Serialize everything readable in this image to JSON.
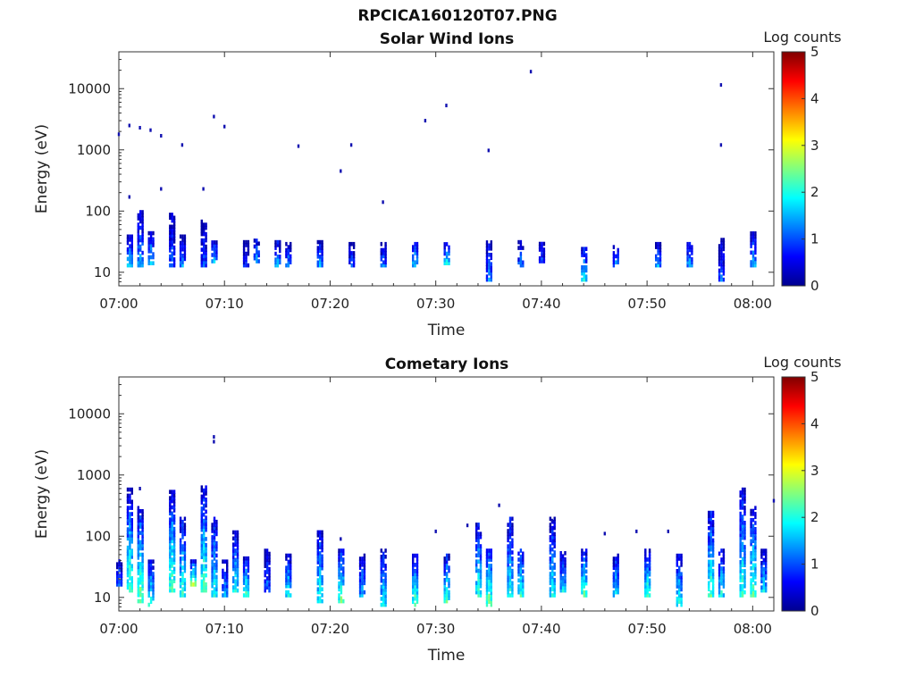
{
  "figure": {
    "title": "RPCICA160120T07.PNG"
  },
  "chart_data": [
    {
      "type": "heatmap",
      "title": "Solar Wind Ions",
      "xlabel": "Time",
      "ylabel": "Energy (eV)",
      "x_ticks": [
        "07:00",
        "07:10",
        "07:20",
        "07:30",
        "07:40",
        "07:50",
        "08:00"
      ],
      "y_ticks": [
        "10",
        "100",
        "1000",
        "10000"
      ],
      "y_scale": "log",
      "xlim": [
        "07:00",
        "08:02"
      ],
      "ylim": [
        6,
        40000
      ],
      "colorbar": {
        "label": "Log counts",
        "ticks": [
          "0",
          "1",
          "2",
          "3",
          "4",
          "5"
        ],
        "range": [
          0,
          5
        ],
        "colormap": "jet"
      },
      "bursts": [
        {
          "t": "07:01",
          "min": 12,
          "max": 40,
          "peak": 1.8
        },
        {
          "t": "07:02",
          "min": 12,
          "max": 100,
          "peak": 1.6
        },
        {
          "t": "07:03",
          "min": 13,
          "max": 45,
          "peak": 1.7
        },
        {
          "t": "07:05",
          "min": 12,
          "max": 90,
          "peak": 1.2
        },
        {
          "t": "07:06",
          "min": 12,
          "max": 40,
          "peak": 1.4
        },
        {
          "t": "07:08",
          "min": 12,
          "max": 70,
          "peak": 1.1
        },
        {
          "t": "07:09",
          "min": 14,
          "max": 32,
          "peak": 1.6
        },
        {
          "t": "07:12",
          "min": 12,
          "max": 32,
          "peak": 1.0
        },
        {
          "t": "07:13",
          "min": 14,
          "max": 34,
          "peak": 1.5
        },
        {
          "t": "07:15",
          "min": 12,
          "max": 32,
          "peak": 1.7
        },
        {
          "t": "07:16",
          "min": 12,
          "max": 30,
          "peak": 1.3
        },
        {
          "t": "07:19",
          "min": 12,
          "max": 32,
          "peak": 1.5
        },
        {
          "t": "07:22",
          "min": 12,
          "max": 30,
          "peak": 1.1
        },
        {
          "t": "07:25",
          "min": 12,
          "max": 30,
          "peak": 1.3
        },
        {
          "t": "07:28",
          "min": 12,
          "max": 30,
          "peak": 1.8
        },
        {
          "t": "07:31",
          "min": 13,
          "max": 30,
          "peak": 1.9
        },
        {
          "t": "07:35",
          "min": 7,
          "max": 32,
          "peak": 1.4
        },
        {
          "t": "07:38",
          "min": 12,
          "max": 32,
          "peak": 1.3
        },
        {
          "t": "07:40",
          "min": 14,
          "max": 30,
          "peak": 1.0
        },
        {
          "t": "07:44",
          "min": 7,
          "max": 25,
          "peak": 1.9
        },
        {
          "t": "07:47",
          "min": 12,
          "max": 30,
          "peak": 1.3
        },
        {
          "t": "07:51",
          "min": 12,
          "max": 30,
          "peak": 1.5
        },
        {
          "t": "07:54",
          "min": 12,
          "max": 30,
          "peak": 1.6
        },
        {
          "t": "07:57",
          "min": 7,
          "max": 35,
          "peak": 1.2
        },
        {
          "t": "08:00",
          "min": 12,
          "max": 45,
          "peak": 1.7
        }
      ],
      "points": [
        {
          "t": "07:00",
          "e": 1800
        },
        {
          "t": "07:01",
          "e": 2500
        },
        {
          "t": "07:02",
          "e": 2300
        },
        {
          "t": "07:03",
          "e": 2100
        },
        {
          "t": "07:04",
          "e": 1700
        },
        {
          "t": "07:06",
          "e": 1200
        },
        {
          "t": "07:09",
          "e": 3500
        },
        {
          "t": "07:10",
          "e": 2400
        },
        {
          "t": "07:17",
          "e": 1150
        },
        {
          "t": "07:21",
          "e": 450
        },
        {
          "t": "07:22",
          "e": 1200
        },
        {
          "t": "07:25",
          "e": 140
        },
        {
          "t": "07:29",
          "e": 3000
        },
        {
          "t": "07:31",
          "e": 5300
        },
        {
          "t": "07:35",
          "e": 980
        },
        {
          "t": "07:39",
          "e": 19000
        },
        {
          "t": "07:57",
          "e": 11500
        },
        {
          "t": "07:57",
          "e": 1200
        },
        {
          "t": "07:04",
          "e": 230
        },
        {
          "t": "07:08",
          "e": 230
        },
        {
          "t": "07:01",
          "e": 170
        }
      ]
    },
    {
      "type": "heatmap",
      "title": "Cometary Ions",
      "xlabel": "Time",
      "ylabel": "Energy (eV)",
      "x_ticks": [
        "07:00",
        "07:10",
        "07:20",
        "07:30",
        "07:40",
        "07:50",
        "08:00"
      ],
      "y_ticks": [
        "10",
        "100",
        "1000",
        "10000"
      ],
      "y_scale": "log",
      "xlim": [
        "07:00",
        "08:02"
      ],
      "ylim": [
        6,
        40000
      ],
      "colorbar": {
        "label": "Log counts",
        "ticks": [
          "0",
          "1",
          "2",
          "3",
          "4",
          "5"
        ],
        "range": [
          0,
          5
        ],
        "colormap": "jet"
      },
      "bursts": [
        {
          "t": "07:00",
          "min": 15,
          "max": 40,
          "peak": 1.4
        },
        {
          "t": "07:01",
          "min": 12,
          "max": 600,
          "peak": 2.4
        },
        {
          "t": "07:02",
          "min": 8,
          "max": 300,
          "peak": 2.6
        },
        {
          "t": "07:03",
          "min": 7,
          "max": 40,
          "peak": 2.2
        },
        {
          "t": "07:05",
          "min": 12,
          "max": 550,
          "peak": 2.4
        },
        {
          "t": "07:06",
          "min": 10,
          "max": 200,
          "peak": 2.2
        },
        {
          "t": "07:07",
          "min": 15,
          "max": 40,
          "peak": 2.8
        },
        {
          "t": "07:08",
          "min": 12,
          "max": 650,
          "peak": 2.4
        },
        {
          "t": "07:09",
          "min": 10,
          "max": 200,
          "peak": 2.0
        },
        {
          "t": "07:10",
          "min": 10,
          "max": 40,
          "peak": 1.5
        },
        {
          "t": "07:11",
          "min": 12,
          "max": 120,
          "peak": 2.0
        },
        {
          "t": "07:12",
          "min": 10,
          "max": 45,
          "peak": 2.2
        },
        {
          "t": "07:14",
          "min": 12,
          "max": 60,
          "peak": 1.2
        },
        {
          "t": "07:16",
          "min": 10,
          "max": 50,
          "peak": 2.0
        },
        {
          "t": "07:19",
          "min": 8,
          "max": 120,
          "peak": 2.2
        },
        {
          "t": "07:21",
          "min": 8,
          "max": 60,
          "peak": 2.4
        },
        {
          "t": "07:23",
          "min": 10,
          "max": 50,
          "peak": 1.6
        },
        {
          "t": "07:25",
          "min": 7,
          "max": 60,
          "peak": 2.1
        },
        {
          "t": "07:28",
          "min": 7,
          "max": 50,
          "peak": 2.4
        },
        {
          "t": "07:31",
          "min": 8,
          "max": 50,
          "peak": 2.3
        },
        {
          "t": "07:34",
          "min": 10,
          "max": 160,
          "peak": 2.2
        },
        {
          "t": "07:35",
          "min": 7,
          "max": 60,
          "peak": 2.6
        },
        {
          "t": "07:37",
          "min": 10,
          "max": 200,
          "peak": 2.0
        },
        {
          "t": "07:38",
          "min": 10,
          "max": 60,
          "peak": 2.2
        },
        {
          "t": "07:41",
          "min": 10,
          "max": 200,
          "peak": 2.0
        },
        {
          "t": "07:42",
          "min": 12,
          "max": 55,
          "peak": 1.8
        },
        {
          "t": "07:44",
          "min": 10,
          "max": 60,
          "peak": 2.4
        },
        {
          "t": "07:47",
          "min": 10,
          "max": 50,
          "peak": 1.9
        },
        {
          "t": "07:50",
          "min": 10,
          "max": 60,
          "peak": 2.3
        },
        {
          "t": "07:53",
          "min": 7,
          "max": 50,
          "peak": 2.1
        },
        {
          "t": "07:56",
          "min": 10,
          "max": 250,
          "peak": 2.3
        },
        {
          "t": "07:57",
          "min": 10,
          "max": 60,
          "peak": 2.0
        },
        {
          "t": "07:59",
          "min": 10,
          "max": 600,
          "peak": 2.2
        },
        {
          "t": "08:00",
          "min": 10,
          "max": 300,
          "peak": 2.4
        },
        {
          "t": "08:01",
          "min": 12,
          "max": 60,
          "peak": 1.8
        }
      ],
      "points": [
        {
          "t": "07:09",
          "e": 4200
        },
        {
          "t": "07:09",
          "e": 3500
        },
        {
          "t": "07:02",
          "e": 600
        },
        {
          "t": "07:30",
          "e": 120
        },
        {
          "t": "07:33",
          "e": 150
        },
        {
          "t": "07:41",
          "e": 180
        },
        {
          "t": "07:46",
          "e": 110
        },
        {
          "t": "07:49",
          "e": 120
        },
        {
          "t": "07:52",
          "e": 120
        },
        {
          "t": "08:02",
          "e": 380
        },
        {
          "t": "07:36",
          "e": 320
        },
        {
          "t": "07:21",
          "e": 90
        }
      ]
    }
  ]
}
